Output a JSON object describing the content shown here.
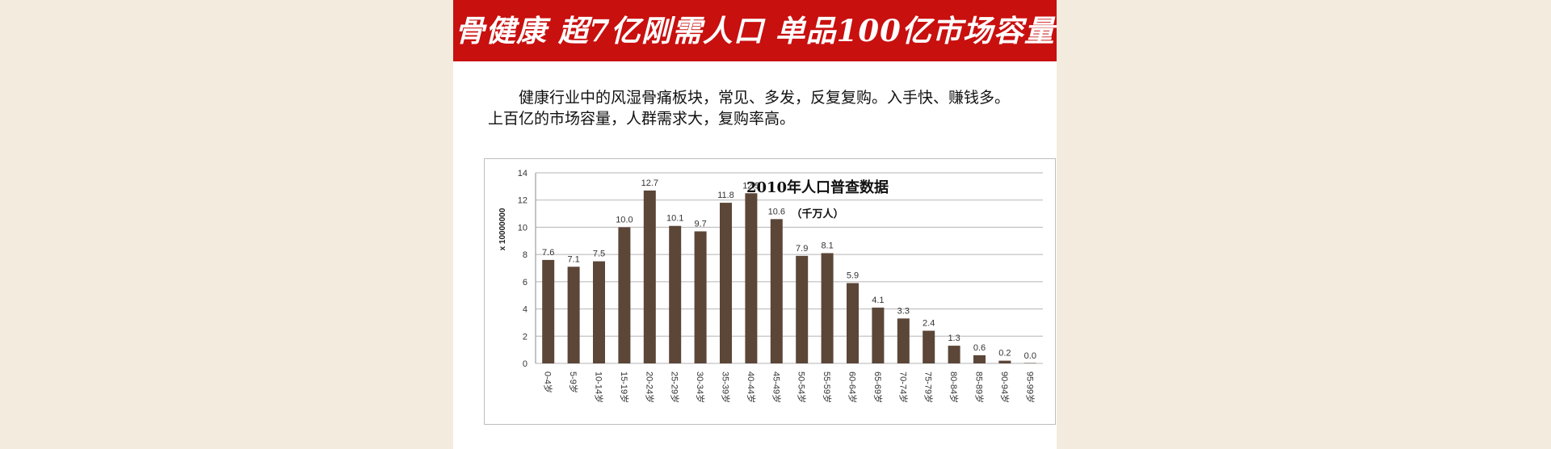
{
  "banner": {
    "title": "骨健康 超7亿刚需人口 单品100亿市场容量",
    "color": "#c8100f"
  },
  "intro": {
    "line1": "健康行业中的风湿骨痛板块，常见、多发，反复复购。入手快、赚钱多。",
    "line2": "上百亿的市场容量，人群需求大，复购率高。"
  },
  "chart_data": {
    "type": "bar",
    "title": "2010年人口普查数据",
    "subtitle": "（千万人）",
    "ylabel": "x 10000000",
    "xlabel": "",
    "ylim": [
      0,
      14
    ],
    "yticks": [
      0,
      2,
      4,
      6,
      8,
      10,
      12,
      14
    ],
    "grid": true,
    "bar_color": "#5b4638",
    "categories": [
      "0-4岁",
      "5-9岁",
      "10-14岁",
      "15-19岁",
      "20-24岁",
      "25-29岁",
      "30-34岁",
      "35-39岁",
      "40-44岁",
      "45-49岁",
      "50-54岁",
      "55-59岁",
      "60-64岁",
      "65-69岁",
      "70-74岁",
      "75-79岁",
      "80-84岁",
      "85-89岁",
      "90-94岁",
      "95-99岁"
    ],
    "values": [
      7.6,
      7.1,
      7.5,
      10.0,
      12.7,
      10.1,
      9.7,
      11.8,
      12.5,
      10.6,
      7.9,
      8.1,
      5.9,
      4.1,
      3.3,
      2.4,
      1.3,
      0.6,
      0.2,
      0.0
    ],
    "data_labels": [
      "7.6",
      "7.1",
      "7.5",
      "10.0",
      "12.7",
      "10.1",
      "9.7",
      "11.8",
      "12.5",
      "10.6",
      "7.9",
      "8.1",
      "5.9",
      "4.1",
      "3.3",
      "2.4",
      "1.3",
      "0.6",
      "0.2",
      "0.0"
    ]
  }
}
